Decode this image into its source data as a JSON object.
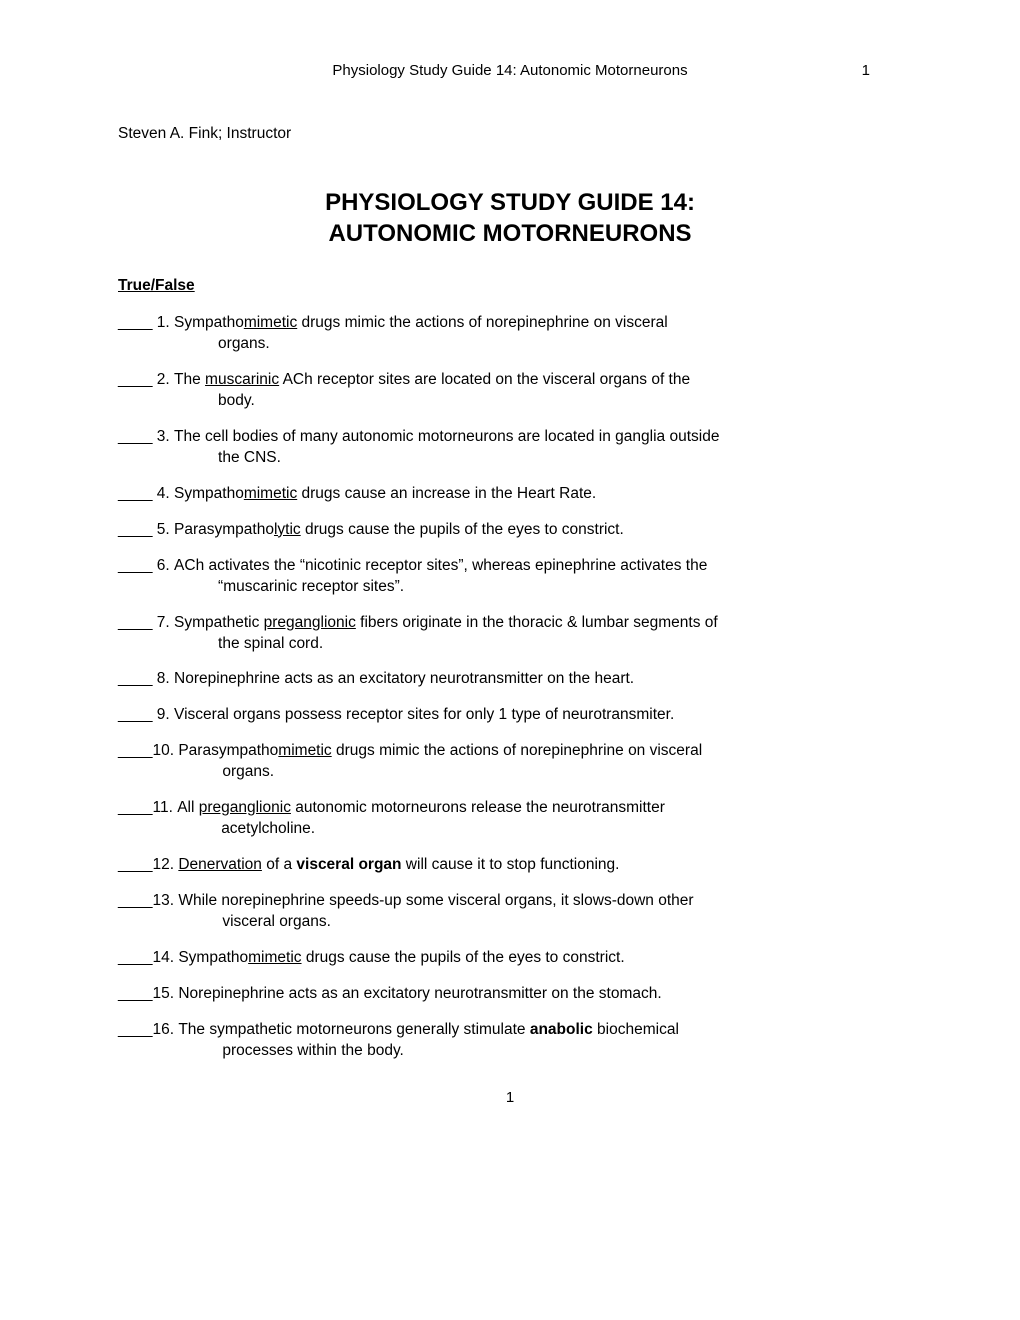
{
  "header": {
    "running_title": "Physiology Study Guide 14: Autonomic Motorneurons",
    "page_number_top": "1"
  },
  "instructor": "Steven A. Fink; Instructor",
  "title_line1": "PHYSIOLOGY STUDY GUIDE 14:",
  "title_line2": "AUTONOMIC MOTORNEURONS",
  "section_heading": "True/False",
  "blank_prefix": "____ ",
  "blank_prefix_tight": "____",
  "questions": [
    {
      "num": "1. ",
      "parts": [
        {
          "t": "Sympatho"
        },
        {
          "t": "mimetic",
          "u": true
        },
        {
          "t": " drugs mimic the actions of norepinephrine on visceral"
        }
      ],
      "cont": "organs."
    },
    {
      "num": "2. ",
      "parts": [
        {
          "t": "The "
        },
        {
          "t": "muscarinic",
          "u": true
        },
        {
          "t": " ACh receptor sites are located on the visceral organs of the"
        }
      ],
      "cont": "body."
    },
    {
      "num": "3. ",
      "parts": [
        {
          "t": "The cell bodies of many autonomic motorneurons are located in ganglia outside"
        }
      ],
      "cont": "the CNS."
    },
    {
      "num": "4. ",
      "parts": [
        {
          "t": "Sympatho"
        },
        {
          "t": "mimetic",
          "u": true
        },
        {
          "t": " drugs cause an increase in the Heart Rate."
        }
      ]
    },
    {
      "num": "5. ",
      "parts": [
        {
          "t": "Parasympatho"
        },
        {
          "t": "lytic",
          "u": true
        },
        {
          "t": " drugs cause the pupils of the eyes to constrict."
        }
      ]
    },
    {
      "num": "6. ",
      "parts": [
        {
          "t": "ACh activates the “nicotinic receptor sites”, whereas epinephrine activates the"
        }
      ],
      "cont": "“muscarinic receptor sites”."
    },
    {
      "num": "7. ",
      "parts": [
        {
          "t": "Sympathetic "
        },
        {
          "t": "preganglionic",
          "u": true
        },
        {
          "t": " fibers originate in the thoracic & lumbar segments of"
        }
      ],
      "cont": "the spinal cord."
    },
    {
      "num": "8. ",
      "parts": [
        {
          "t": "Norepinephrine acts as an excitatory neurotransmitter on the heart."
        }
      ]
    },
    {
      "num": "9. ",
      "parts": [
        {
          "t": "Visceral organs possess receptor sites for only 1 type of neurotransmiter."
        }
      ]
    },
    {
      "num": "10. ",
      "tight": true,
      "parts": [
        {
          "t": "Parasympatho"
        },
        {
          "t": "mimetic",
          "u": true
        },
        {
          "t": " drugs mimic the actions of norepinephrine on visceral"
        }
      ],
      "cont": "organs."
    },
    {
      "num": "11. ",
      "tight": true,
      "parts": [
        {
          "t": "All "
        },
        {
          "t": "preganglionic",
          "u": true
        },
        {
          "t": " autonomic motorneurons release the neurotransmitter"
        }
      ],
      "cont": "acetylcholine."
    },
    {
      "num": "12. ",
      "tight": true,
      "parts": [
        {
          "t": "Denervation",
          "u": true
        },
        {
          "t": " of a "
        },
        {
          "t": "visceral organ",
          "b": true
        },
        {
          "t": " will cause it to stop functioning."
        }
      ]
    },
    {
      "num": "13. ",
      "tight": true,
      "parts": [
        {
          "t": "While norepinephrine speeds-up some visceral organs, it slows-down other"
        }
      ],
      "cont": "visceral organs."
    },
    {
      "num": "14. ",
      "tight": true,
      "parts": [
        {
          "t": "Sympatho"
        },
        {
          "t": "mimetic",
          "u": true
        },
        {
          "t": " drugs cause the pupils of the eyes to constrict."
        }
      ]
    },
    {
      "num": "15. ",
      "tight": true,
      "parts": [
        {
          "t": "Norepinephrine acts as an excitatory neurotransmitter on the stomach."
        }
      ]
    },
    {
      "num": "16. ",
      "tight": true,
      "parts": [
        {
          "t": "The sympathetic motorneurons generally stimulate "
        },
        {
          "t": "anabolic",
          "b": true
        },
        {
          "t": " biochemical"
        }
      ],
      "cont": "processes within the body."
    }
  ],
  "footer_page_number": "1"
}
